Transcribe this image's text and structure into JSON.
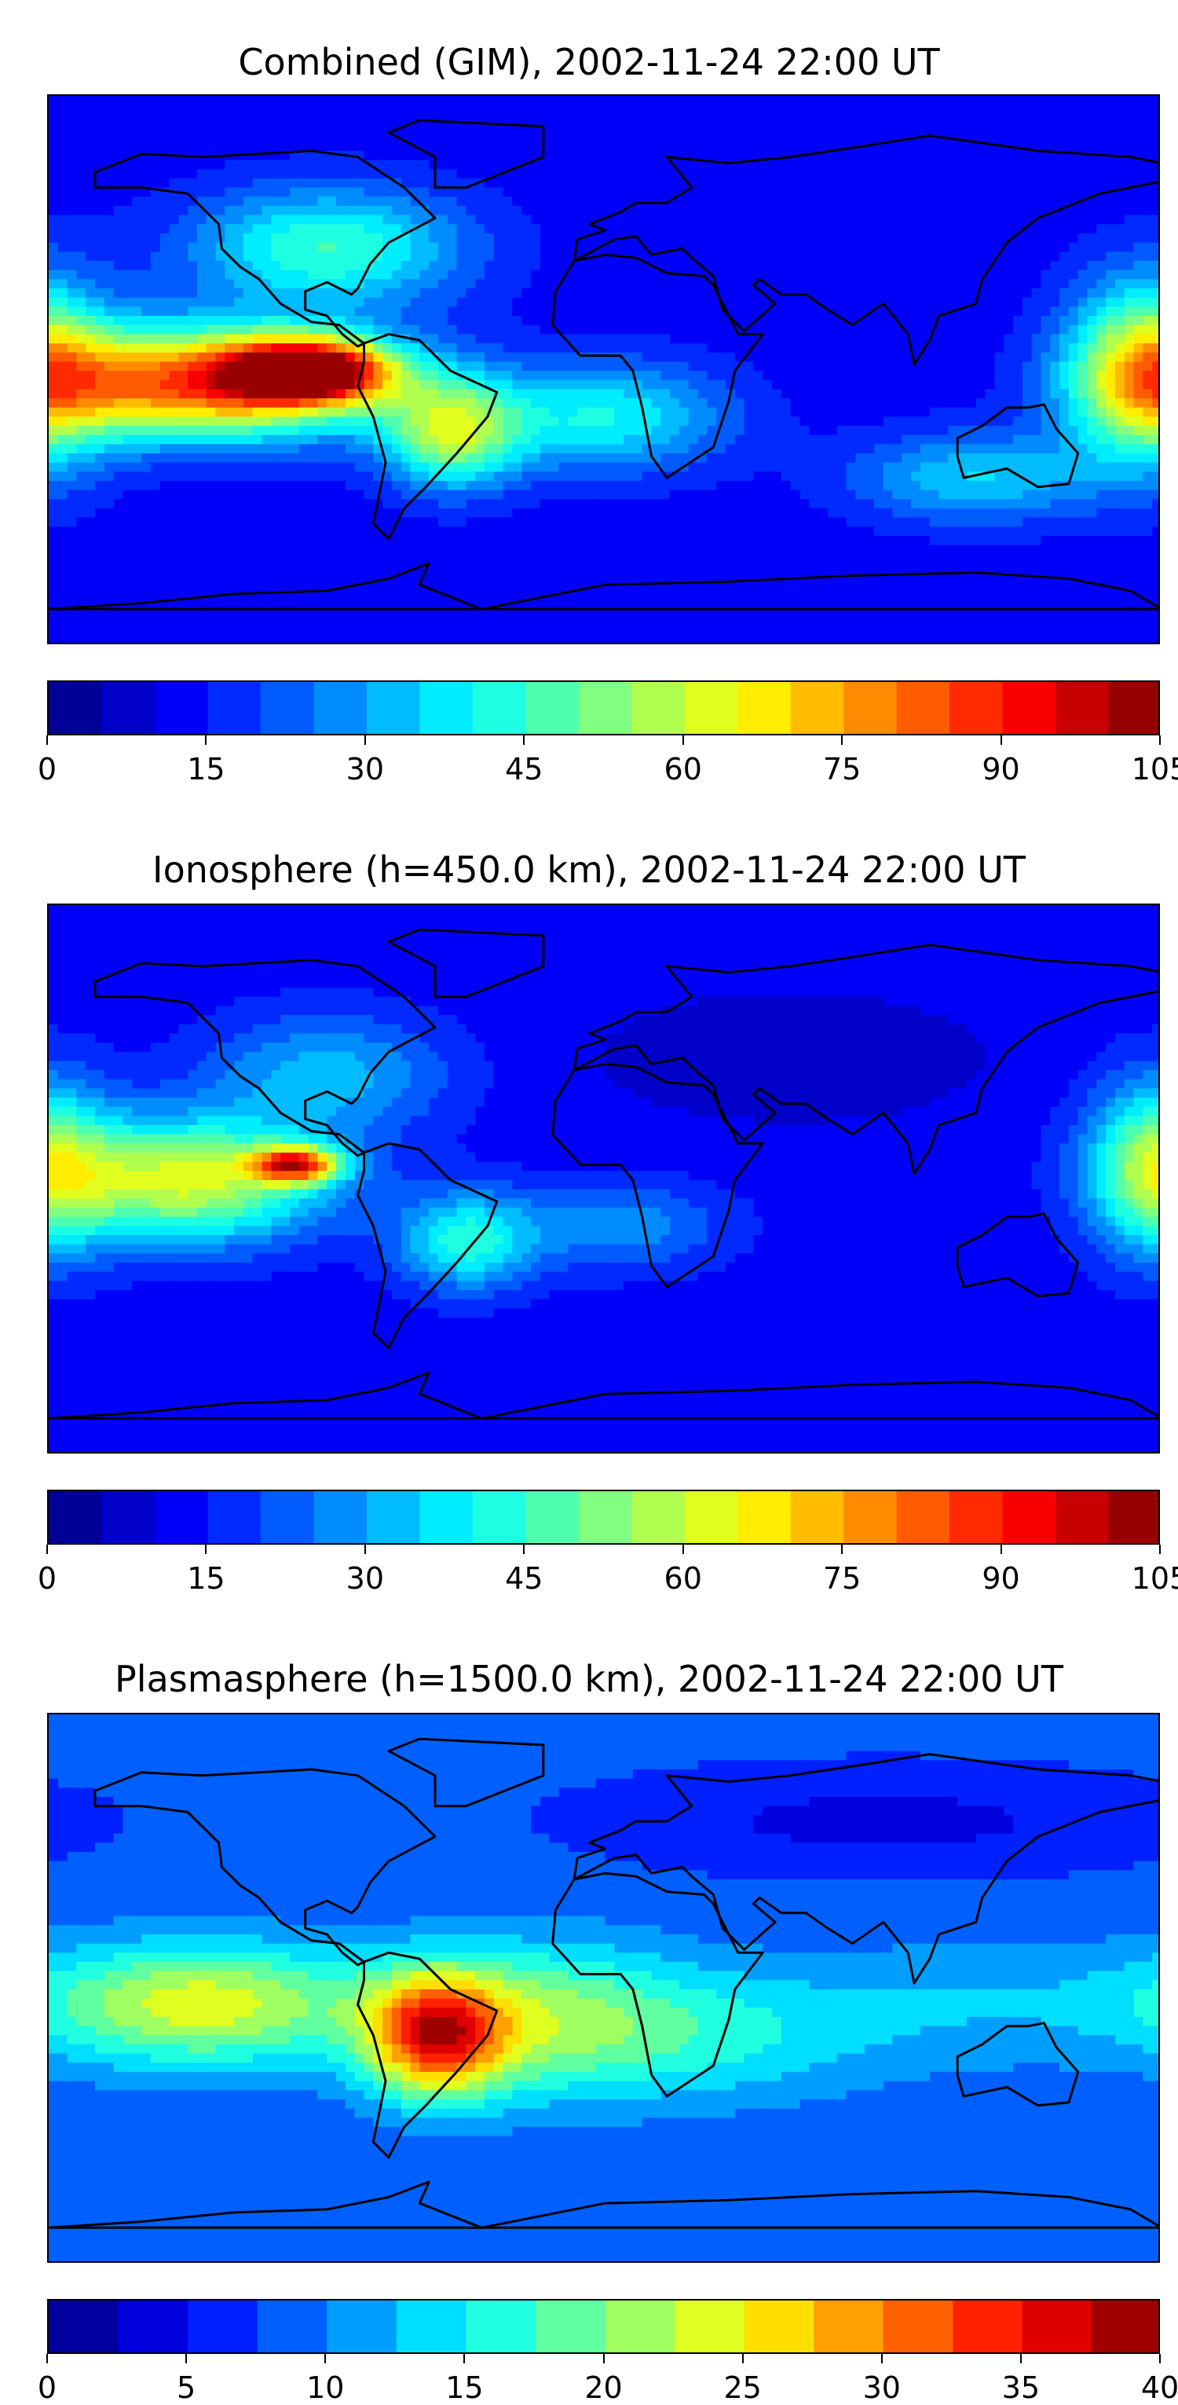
{
  "chart_data": [
    {
      "type": "heatmap",
      "title": "Combined (GIM), 2002-11-24 22:00 UT",
      "colorbar": {
        "min": 0,
        "max": 105,
        "step": 5,
        "ticks": [
          0,
          15,
          30,
          45,
          60,
          75,
          90,
          105
        ]
      },
      "background_value": 12,
      "blobs": [
        {
          "lon": -130,
          "lat": -4,
          "value": 85,
          "rx": 55,
          "ry": 18
        },
        {
          "lon": -95,
          "lat": 0,
          "value": 92,
          "rx": 25,
          "ry": 10
        },
        {
          "lon": -90,
          "lat": 40,
          "value": 45,
          "rx": 45,
          "ry": 20
        },
        {
          "lon": -50,
          "lat": -20,
          "value": 55,
          "rx": 22,
          "ry": 18
        },
        {
          "lon": 0,
          "lat": -15,
          "value": 40,
          "rx": 40,
          "ry": 18
        },
        {
          "lon": 175,
          "lat": 0,
          "value": 60,
          "rx": 25,
          "ry": 30
        },
        {
          "lon": 120,
          "lat": -35,
          "value": 35,
          "rx": 40,
          "ry": 15
        }
      ]
    },
    {
      "type": "heatmap",
      "title": "Ionosphere  (h=450.0 km), 2002-11-24 22:00 UT",
      "colorbar": {
        "min": 0,
        "max": 105,
        "step": 5,
        "ticks": [
          0,
          15,
          30,
          45,
          60,
          75,
          90,
          105
        ]
      },
      "background_value": 12,
      "blobs": [
        {
          "lon": -135,
          "lat": 0,
          "value": 62,
          "rx": 45,
          "ry": 20
        },
        {
          "lon": -100,
          "lat": 5,
          "value": 74,
          "rx": 14,
          "ry": 6
        },
        {
          "lon": -90,
          "lat": 35,
          "value": 32,
          "rx": 40,
          "ry": 20
        },
        {
          "lon": -45,
          "lat": -20,
          "value": 42,
          "rx": 22,
          "ry": 16
        },
        {
          "lon": 5,
          "lat": -15,
          "value": 28,
          "rx": 35,
          "ry": 15
        },
        {
          "lon": 178,
          "lat": 5,
          "value": 50,
          "rx": 22,
          "ry": 28
        },
        {
          "lon": 60,
          "lat": 40,
          "value": 6,
          "rx": 60,
          "ry": 20
        }
      ]
    },
    {
      "type": "heatmap",
      "title": "Plasmasphere (h=1500.0 km), 2002-11-24 22:00 UT",
      "colorbar": {
        "min": 0,
        "max": 40,
        "step": 2.5,
        "ticks": [
          0,
          5,
          10,
          15,
          20,
          25,
          30,
          35,
          40
        ]
      },
      "background_value": 8,
      "blobs": [
        {
          "lon": -130,
          "lat": -5,
          "value": 24,
          "rx": 55,
          "ry": 20
        },
        {
          "lon": -55,
          "lat": -15,
          "value": 31,
          "rx": 22,
          "ry": 20
        },
        {
          "lon": -20,
          "lat": -10,
          "value": 20,
          "rx": 45,
          "ry": 25
        },
        {
          "lon": 40,
          "lat": -15,
          "value": 14,
          "rx": 50,
          "ry": 22
        },
        {
          "lon": 120,
          "lat": -5,
          "value": 12,
          "rx": 60,
          "ry": 22
        },
        {
          "lon": 90,
          "lat": 55,
          "value": 4,
          "rx": 80,
          "ry": 15
        }
      ]
    }
  ]
}
